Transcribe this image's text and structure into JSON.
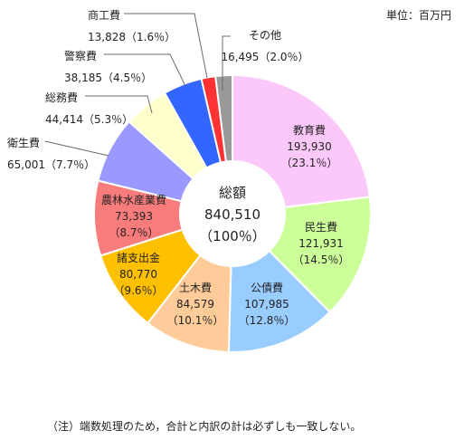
{
  "unit_label": "単位：百万円",
  "note": "（注）端数処理のため，合計と内訳の計は必ずしも一致しない。",
  "chart_data": {
    "type": "pie",
    "donut": true,
    "center": {
      "title": "総額",
      "value": "840,510",
      "share": "（100％）"
    },
    "slices": [
      {
        "name": "教育費",
        "value": 193930,
        "value_label": "193,930",
        "share": "（23.1％）",
        "color": "#FCC8FA"
      },
      {
        "name": "民生費",
        "value": 121931,
        "value_label": "121,931",
        "share": "（14.5％）",
        "color": "#CCFF99"
      },
      {
        "name": "公債費",
        "value": 107985,
        "value_label": "107,985",
        "share": "（12.8％）",
        "color": "#99CCFF"
      },
      {
        "name": "土木費",
        "value": 84579,
        "value_label": "84,579",
        "share": "（10.1％）",
        "color": "#FFCC99"
      },
      {
        "name": "諸支出金",
        "value": 80770,
        "value_label": "80,770",
        "share": "（9.6％）",
        "color": "#FFC000"
      },
      {
        "name": "農林水産業費",
        "value": 73393,
        "value_label": "73,393",
        "share": "（8.7％）",
        "color": "#F87C7C"
      },
      {
        "name": "衛生費",
        "value": 65001,
        "value_label": "65,001",
        "share": "（7.7％）",
        "color": "#9999FF"
      },
      {
        "name": "総務費",
        "value": 44414,
        "value_label": "44,414",
        "share": "（5.3％）",
        "color": "#FFFFCC"
      },
      {
        "name": "警察費",
        "value": 38185,
        "value_label": "38,185",
        "share": "（4.5％）",
        "color": "#3366FF"
      },
      {
        "name": "商工費",
        "value": 13828,
        "value_label": "13,828",
        "share": "（1.6％）",
        "color": "#FF3333"
      },
      {
        "name": "その他",
        "value": 16495,
        "value_label": "16,495",
        "share": "（2.0％）",
        "color": "#999999"
      }
    ]
  }
}
